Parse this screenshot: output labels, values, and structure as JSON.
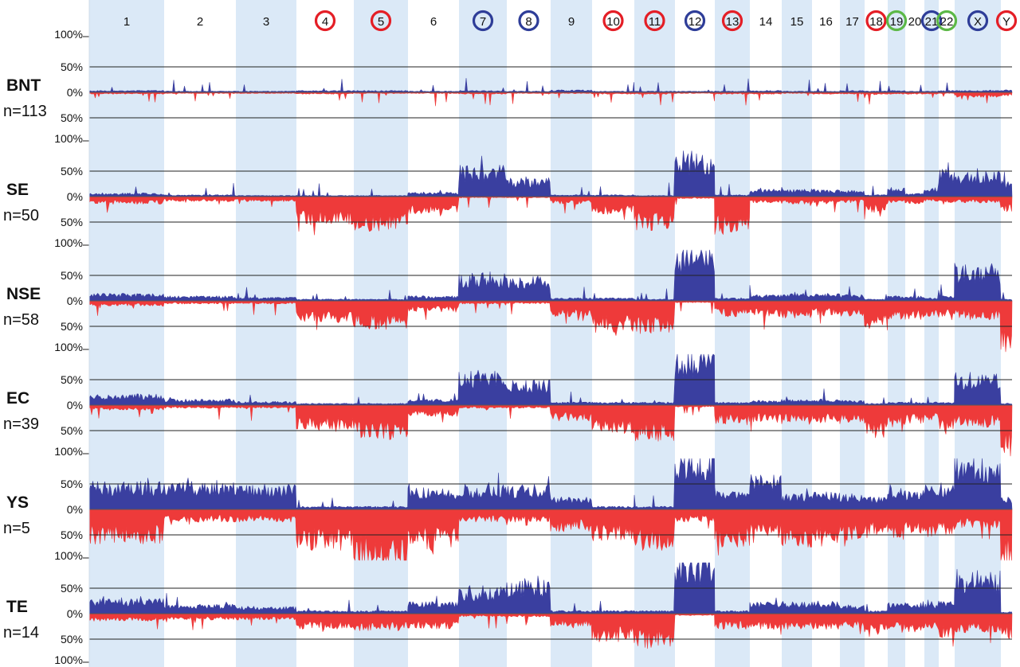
{
  "chart_data": {
    "type": "bar",
    "description_units": "percent of samples with copy-number gain (up) / loss (down) per genomic position",
    "colors": {
      "gain": "#3a3fa0",
      "loss": "#ee3a3a",
      "band": "#dbe9f7",
      "circle_red": "#e41e26",
      "circle_blue": "#2e3d98",
      "circle_green": "#5cb847"
    },
    "chromosomes": [
      {
        "label": "1",
        "start": 112,
        "end": 206,
        "shade": true,
        "circle": ""
      },
      {
        "label": "2",
        "start": 206,
        "end": 296,
        "shade": false,
        "circle": ""
      },
      {
        "label": "3",
        "start": 296,
        "end": 372,
        "shade": true,
        "circle": ""
      },
      {
        "label": "4",
        "start": 372,
        "end": 444,
        "shade": false,
        "circle": "red"
      },
      {
        "label": "5",
        "start": 444,
        "end": 512,
        "shade": true,
        "circle": "red"
      },
      {
        "label": "6",
        "start": 512,
        "end": 576,
        "shade": false,
        "circle": ""
      },
      {
        "label": "7",
        "start": 576,
        "end": 636,
        "shade": true,
        "circle": "blue"
      },
      {
        "label": "8",
        "start": 636,
        "end": 691,
        "shade": false,
        "circle": "blue"
      },
      {
        "label": "9",
        "start": 691,
        "end": 743,
        "shade": true,
        "circle": ""
      },
      {
        "label": "10",
        "start": 743,
        "end": 796,
        "shade": false,
        "circle": "red"
      },
      {
        "label": "11",
        "start": 796,
        "end": 847,
        "shade": true,
        "circle": "red"
      },
      {
        "label": "12",
        "start": 847,
        "end": 897,
        "shade": false,
        "circle": "blue"
      },
      {
        "label": "13",
        "start": 897,
        "end": 941,
        "shade": true,
        "circle": "red"
      },
      {
        "label": "14",
        "start": 941,
        "end": 981,
        "shade": false,
        "circle": ""
      },
      {
        "label": "15",
        "start": 981,
        "end": 1019,
        "shade": true,
        "circle": ""
      },
      {
        "label": "16",
        "start": 1019,
        "end": 1054,
        "shade": false,
        "circle": ""
      },
      {
        "label": "17",
        "start": 1054,
        "end": 1085,
        "shade": true,
        "circle": ""
      },
      {
        "label": "18",
        "start": 1085,
        "end": 1114,
        "shade": false,
        "circle": "red"
      },
      {
        "label": "19",
        "start": 1114,
        "end": 1136,
        "shade": true,
        "circle": "green"
      },
      {
        "label": "20",
        "start": 1136,
        "end": 1160,
        "shade": false,
        "circle": ""
      },
      {
        "label": "21",
        "start": 1160,
        "end": 1178,
        "shade": true,
        "circle": "blue"
      },
      {
        "label": "22",
        "start": 1178,
        "end": 1198,
        "shade": false,
        "circle": "green"
      },
      {
        "label": "X",
        "start": 1198,
        "end": 1256,
        "shade": true,
        "circle": "blue"
      },
      {
        "label": "Y",
        "start": 1256,
        "end": 1270,
        "shade": false,
        "circle": "red"
      }
    ],
    "y_ticks": [
      "100%",
      "50%",
      "0%",
      "50%",
      "100%"
    ],
    "groups": [
      {
        "name": "BNT",
        "n": "n=113",
        "seed": 11,
        "gain": [
          3,
          2,
          2,
          3,
          3,
          2,
          3,
          2,
          4,
          2,
          2,
          2,
          2,
          3,
          2,
          2,
          3,
          2,
          3,
          2,
          2,
          3,
          3,
          4
        ],
        "loss": [
          3,
          2,
          2,
          3,
          2,
          2,
          3,
          2,
          2,
          3,
          3,
          2,
          3,
          3,
          2,
          3,
          3,
          4,
          3,
          3,
          3,
          2,
          8,
          6
        ]
      },
      {
        "name": "SE",
        "n": "n=50",
        "seed": 23,
        "gain": [
          6,
          3,
          2,
          2,
          2,
          7,
          50,
          30,
          3,
          3,
          2,
          75,
          3,
          12,
          12,
          12,
          10,
          3,
          15,
          5,
          15,
          45,
          40,
          25
        ],
        "loss": [
          12,
          8,
          8,
          45,
          55,
          28,
          2,
          2,
          12,
          28,
          55,
          3,
          60,
          10,
          12,
          12,
          10,
          25,
          10,
          12,
          8,
          10,
          10,
          25
        ]
      },
      {
        "name": "NSE",
        "n": "n=58",
        "seed": 37,
        "gain": [
          12,
          8,
          6,
          3,
          3,
          8,
          45,
          40,
          5,
          5,
          3,
          90,
          5,
          10,
          12,
          12,
          10,
          3,
          8,
          8,
          5,
          8,
          60,
          3
        ],
        "loss": [
          8,
          5,
          5,
          35,
          45,
          18,
          5,
          5,
          25,
          50,
          55,
          3,
          25,
          25,
          28,
          25,
          25,
          45,
          30,
          30,
          25,
          30,
          30,
          85
        ]
      },
      {
        "name": "EC",
        "n": "n=39",
        "seed": 53,
        "gain": [
          18,
          10,
          6,
          3,
          3,
          10,
          55,
          40,
          5,
          5,
          5,
          95,
          5,
          8,
          10,
          10,
          8,
          3,
          5,
          5,
          5,
          5,
          52,
          3
        ],
        "loss": [
          8,
          5,
          5,
          40,
          55,
          18,
          5,
          5,
          25,
          45,
          58,
          3,
          30,
          28,
          30,
          28,
          30,
          52,
          35,
          30,
          25,
          40,
          35,
          85
        ]
      },
      {
        "name": "YS",
        "n": "n=5",
        "seed": 71,
        "gain": [
          45,
          45,
          40,
          5,
          5,
          35,
          40,
          40,
          20,
          5,
          5,
          100,
          30,
          60,
          25,
          30,
          25,
          20,
          40,
          30,
          40,
          40,
          85,
          20
        ],
        "loss": [
          55,
          20,
          20,
          65,
          90,
          60,
          20,
          20,
          35,
          50,
          65,
          20,
          60,
          45,
          60,
          55,
          50,
          40,
          50,
          40,
          50,
          40,
          30,
          90
        ]
      },
      {
        "name": "TE",
        "n": "n=14",
        "seed": 89,
        "gain": [
          25,
          15,
          12,
          5,
          5,
          20,
          45,
          55,
          5,
          5,
          5,
          100,
          5,
          20,
          20,
          20,
          15,
          5,
          20,
          20,
          15,
          20,
          70,
          3
        ],
        "loss": [
          12,
          10,
          10,
          25,
          28,
          25,
          5,
          5,
          20,
          45,
          55,
          3,
          25,
          25,
          25,
          25,
          20,
          35,
          30,
          30,
          25,
          40,
          30,
          40
        ]
      }
    ]
  }
}
